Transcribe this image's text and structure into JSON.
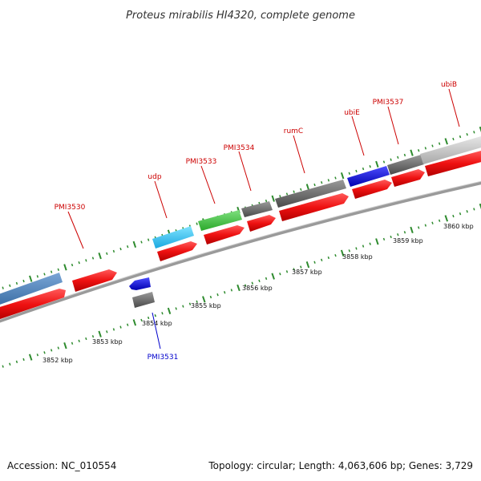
{
  "title": "Proteus mirabilis HI4320, complete genome",
  "footer": {
    "accession": "Accession: NC_010554",
    "summary": "Topology: circular; Length: 4,063,606 bp; Genes: 3,729"
  },
  "colors": {
    "backbone": "#8a8a8a",
    "tick": "#2e8b2e",
    "cds": "#ee1111",
    "label_forward": "#cc0000",
    "label_reverse": "#0000cc"
  },
  "ruler_labels": [
    "3852 kbp",
    "3853 kbp",
    "3854 kbp",
    "3855 kbp",
    "3856 kbp",
    "3857 kbp",
    "3858 kbp",
    "3859 kbp",
    "3860 kbp"
  ],
  "gene_labels": [
    {
      "name": "PMI3530",
      "strand": "forward"
    },
    {
      "name": "udp",
      "strand": "forward"
    },
    {
      "name": "PMI3533",
      "strand": "forward"
    },
    {
      "name": "PMI3534",
      "strand": "forward"
    },
    {
      "name": "rumC",
      "strand": "forward"
    },
    {
      "name": "ubiE",
      "strand": "forward"
    },
    {
      "name": "PMI3537",
      "strand": "forward"
    },
    {
      "name": "ubiB",
      "strand": "forward"
    },
    {
      "name": "PMI3531",
      "strand": "reverse"
    }
  ]
}
